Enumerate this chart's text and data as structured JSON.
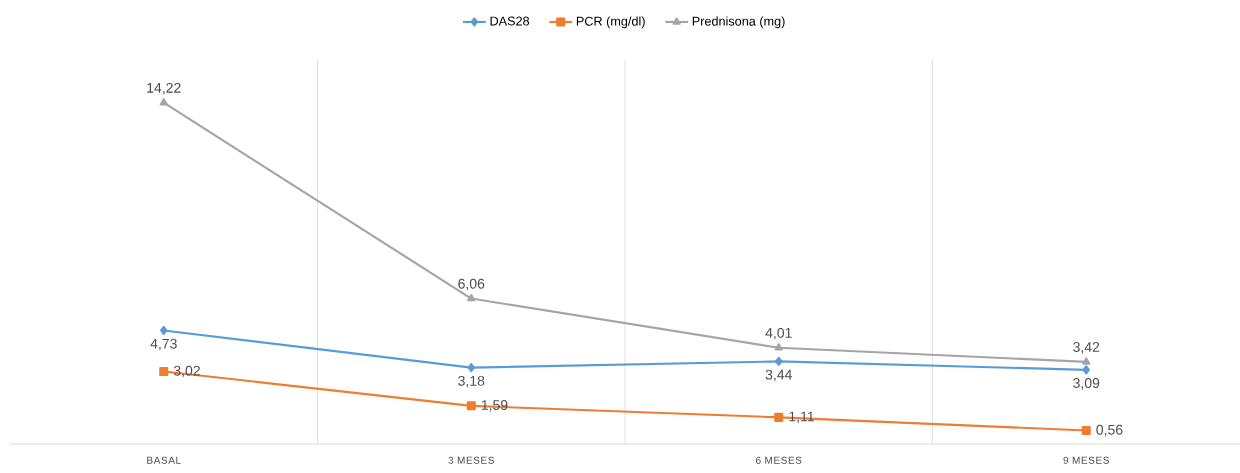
{
  "chart_data": {
    "type": "line",
    "categories": [
      "BASAL",
      "3 MESES",
      "6 MESES",
      "9 MESES"
    ],
    "series": [
      {
        "name": "DAS28",
        "color": "#5b9bd5",
        "marker": "diamond",
        "values": [
          4.73,
          3.18,
          3.44,
          3.09
        ],
        "value_labels": [
          "4,73",
          "3,18",
          "3,44",
          "3,09"
        ]
      },
      {
        "name": "PCR (mg/dl)",
        "color": "#ed7d31",
        "marker": "square",
        "values": [
          3.02,
          1.59,
          1.11,
          0.56
        ],
        "value_labels": [
          "3,02",
          "1,59",
          "1,11",
          "0,56"
        ]
      },
      {
        "name": "Prednisona (mg)",
        "color": "#a5a5a5",
        "marker": "triangle",
        "values": [
          14.22,
          6.06,
          4.01,
          3.42
        ],
        "value_labels": [
          "14,22",
          "6,06",
          "4,01",
          "3,42"
        ]
      }
    ],
    "ylim": [
      0,
      16
    ],
    "tick_labels": "x",
    "grid": "x",
    "legend": "top"
  }
}
